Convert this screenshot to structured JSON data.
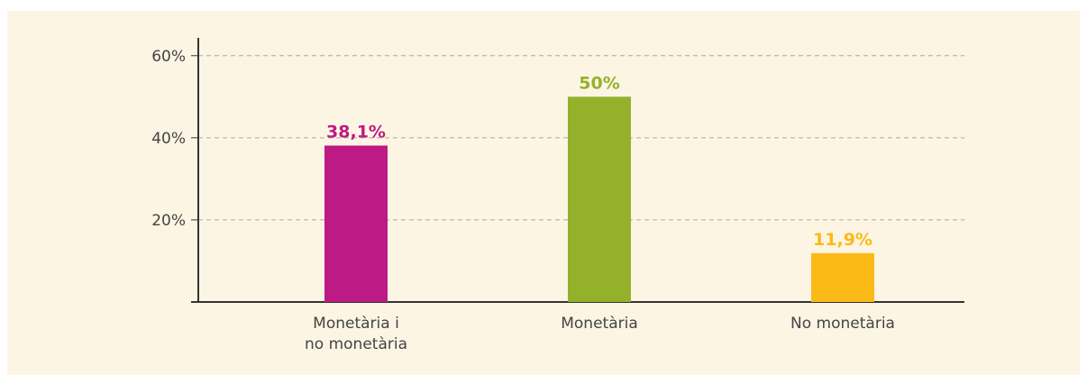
{
  "chart_data": {
    "type": "bar",
    "categories": [
      "Monetària i\nno monetària",
      "Monetària",
      "No monetària"
    ],
    "values": [
      38.1,
      50,
      11.9
    ],
    "value_labels": [
      "38,1%",
      "50%",
      "11,9%"
    ],
    "colors": [
      "#bd1a85",
      "#94b12b",
      "#fbb918"
    ],
    "ylim": [
      0,
      65
    ],
    "yticks": [
      {
        "value": 20,
        "label": "20%"
      },
      {
        "value": 40,
        "label": "40%"
      },
      {
        "value": 60,
        "label": "60%"
      }
    ],
    "grid": true
  }
}
